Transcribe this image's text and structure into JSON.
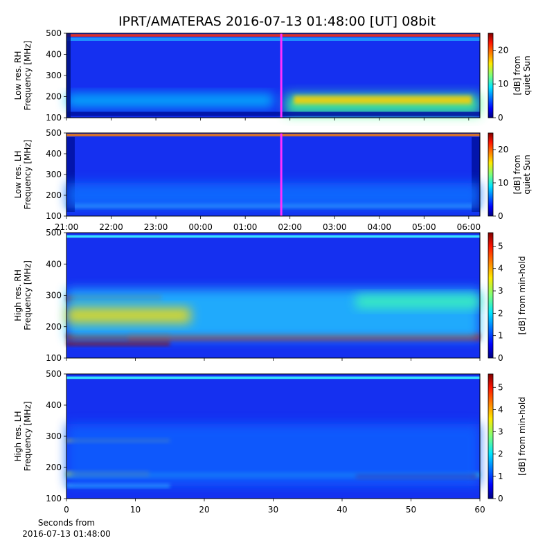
{
  "chart_data": [
    {
      "type": "heatmap",
      "title": "IPRT/AMATERAS 2016-07-13 01:48:00 [UT]   08bit",
      "ylabel": [
        "Low res. RH",
        "Frequency [MHz]"
      ],
      "ylim": [
        100,
        500
      ],
      "yticks": [
        100,
        200,
        300,
        400,
        500
      ],
      "colorbar_label": [
        "[dB] from",
        "quiet Sun"
      ],
      "clim": [
        0,
        25
      ],
      "cticks": [
        0,
        10,
        20
      ]
    },
    {
      "type": "heatmap",
      "ylabel": [
        "Low res. LH",
        "Frequency [MHz]"
      ],
      "ylim": [
        100,
        500
      ],
      "yticks": [
        100,
        200,
        300,
        400,
        500
      ],
      "colorbar_label": [
        "[dB] from",
        "quiet Sun"
      ],
      "clim": [
        0,
        25
      ],
      "cticks": [
        0,
        10,
        20
      ],
      "xticks": [
        "21:00",
        "22:00",
        "23:00",
        "00:00",
        "01:00",
        "02:00",
        "03:00",
        "04:00",
        "05:00",
        "06:00"
      ]
    },
    {
      "type": "heatmap",
      "ylabel": [
        "High res. RH",
        "Frequency [MHz]"
      ],
      "ylim": [
        100,
        500
      ],
      "yticks": [
        100,
        200,
        300,
        400,
        500
      ],
      "colorbar_label": [
        "[dB] from min-hold"
      ],
      "clim": [
        0,
        5.6
      ],
      "cticks": [
        0,
        1,
        2,
        3,
        4,
        5
      ]
    },
    {
      "type": "heatmap",
      "ylabel": [
        "High res. LH",
        "Frequency [MHz]"
      ],
      "ylim": [
        100,
        500
      ],
      "yticks": [
        100,
        200,
        300,
        400,
        500
      ],
      "colorbar_label": [
        "[dB] from min-hold"
      ],
      "clim": [
        0,
        5.6
      ],
      "cticks": [
        0,
        1,
        2,
        3,
        4,
        5
      ],
      "xlim": [
        0,
        60
      ],
      "xticks": [
        0,
        10,
        20,
        30,
        40,
        50,
        60
      ],
      "xlabel": [
        "Seconds from",
        "2016-07-13 01:48:00"
      ]
    }
  ]
}
